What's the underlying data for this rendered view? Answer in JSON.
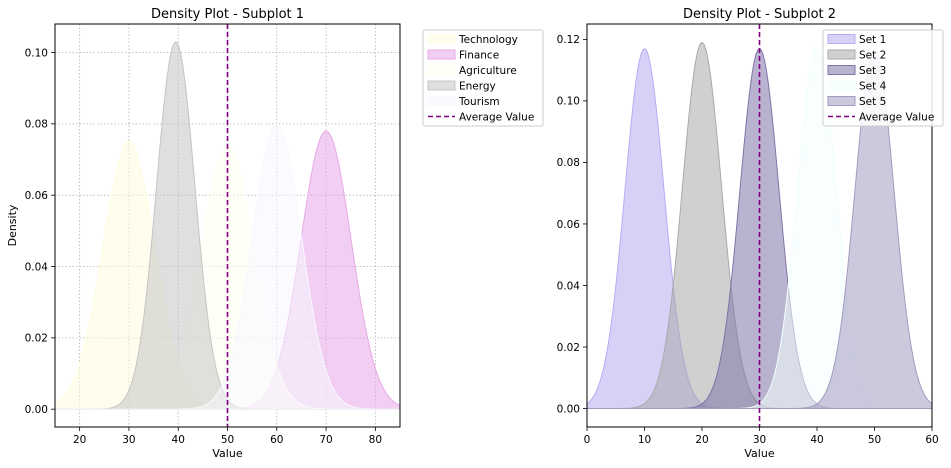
{
  "chart_data": [
    {
      "type": "area",
      "title": "Density Plot - Subplot 1",
      "xlabel": "Value",
      "ylabel": "Density",
      "xlim": [
        15,
        85
      ],
      "ylim": [
        -0.005,
        0.108
      ],
      "xticks": [
        20,
        30,
        40,
        50,
        60,
        70,
        80
      ],
      "yticks": [
        0.0,
        0.02,
        0.04,
        0.06,
        0.08,
        0.1
      ],
      "ytick_labels": [
        "0.00",
        "0.02",
        "0.04",
        "0.06",
        "0.08",
        "0.10"
      ],
      "grid": true,
      "legend_position": "outside-right",
      "reference_line": {
        "x": 50,
        "label": "Average Value",
        "color": "#800080"
      },
      "series": [
        {
          "name": "Technology",
          "mean": 30,
          "sd": 5.3,
          "peak": 0.075,
          "color": "#fffde0"
        },
        {
          "name": "Finance",
          "mean": 70,
          "sd": 5.1,
          "peak": 0.078,
          "color": "#e8a8e8"
        },
        {
          "name": "Agriculture",
          "mean": 50,
          "sd": 5.3,
          "peak": 0.074,
          "color": "#fffff0"
        },
        {
          "name": "Energy",
          "mean": 39.5,
          "sd": 3.9,
          "peak": 0.103,
          "color": "#c4c4c4"
        },
        {
          "name": "Tourism",
          "mean": 60,
          "sd": 5.0,
          "peak": 0.08,
          "color": "#f8f8ff"
        }
      ]
    },
    {
      "type": "area",
      "title": "Density Plot - Subplot 2",
      "xlabel": "Value",
      "ylabel": "",
      "xlim": [
        0,
        60
      ],
      "ylim": [
        -0.006,
        0.125
      ],
      "xticks": [
        0,
        10,
        20,
        30,
        40,
        50,
        60
      ],
      "yticks": [
        0.0,
        0.02,
        0.04,
        0.06,
        0.08,
        0.1,
        0.12
      ],
      "ytick_labels": [
        "0.00",
        "0.02",
        "0.04",
        "0.06",
        "0.08",
        "0.10",
        "0.12"
      ],
      "grid": false,
      "legend_position": "top-right",
      "reference_line": {
        "x": 30,
        "label": "Average Value",
        "color": "#800080"
      },
      "series": [
        {
          "name": "Set 1",
          "mean": 10,
          "sd": 3.4,
          "peak": 0.117,
          "color": "#b6acf2"
        },
        {
          "name": "Set 2",
          "mean": 20,
          "sd": 3.4,
          "peak": 0.119,
          "color": "#a9a9a9"
        },
        {
          "name": "Set 3",
          "mean": 30,
          "sd": 3.4,
          "peak": 0.117,
          "color": "#7e76a8"
        },
        {
          "name": "Set 4",
          "mean": 40,
          "sd": 3.4,
          "peak": 0.118,
          "color": "#f2fffe"
        },
        {
          "name": "Set 5",
          "mean": 50,
          "sd": 3.4,
          "peak": 0.117,
          "color": "#a49bc0"
        }
      ]
    }
  ]
}
